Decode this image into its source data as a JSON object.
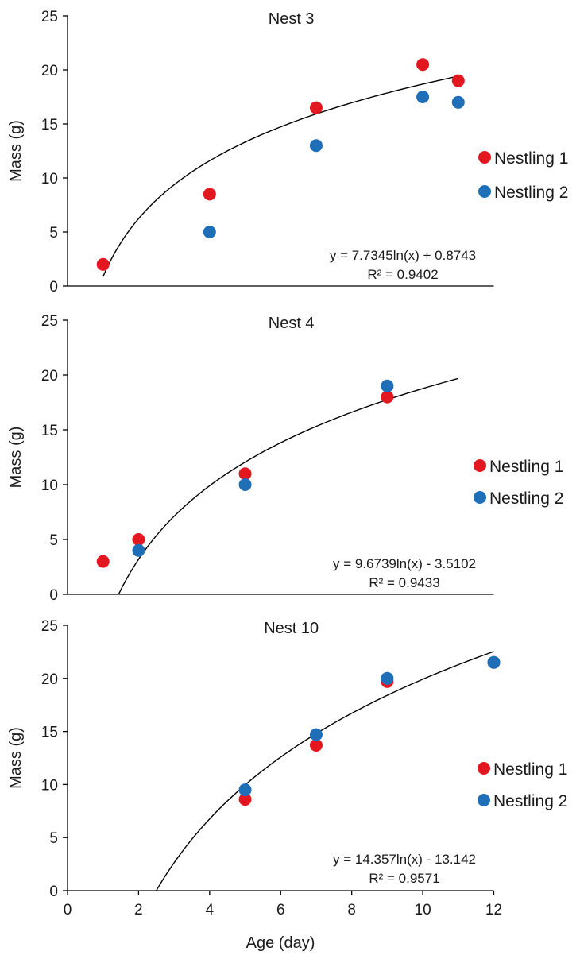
{
  "shared_xlabel": "Age (day)",
  "chart_data": [
    {
      "type": "scatter",
      "title": "Nest 3",
      "ylabel": "Mass (g)",
      "ylim": [
        0,
        25
      ],
      "yticks": [
        "0",
        "5",
        "10",
        "15",
        "20",
        "25"
      ],
      "xlim": [
        0,
        12
      ],
      "series": [
        {
          "name": "Nestling 1",
          "color": "#e3171f",
          "x": [
            1,
            4,
            7,
            10,
            11
          ],
          "y": [
            2,
            8.5,
            16.5,
            20.5,
            19
          ]
        },
        {
          "name": "Nestling 2",
          "color": "#1f6fb8",
          "x": [
            4,
            7,
            10,
            11
          ],
          "y": [
            5,
            13,
            17.5,
            17
          ]
        }
      ],
      "trendline": {
        "a": 7.7345,
        "b": 0.8743,
        "x_start": 1,
        "x_end": 11
      },
      "equation": "y = 7.7345ln(x) + 0.8743",
      "r2": "R² = 0.9402",
      "legend_position": "right"
    },
    {
      "type": "scatter",
      "title": "Nest 4",
      "ylabel": "Mass (g)",
      "ylim": [
        0,
        25
      ],
      "yticks": [
        "0",
        "5",
        "10",
        "15",
        "20",
        "25"
      ],
      "xlim": [
        0,
        12
      ],
      "series": [
        {
          "name": "Nestling 1",
          "color": "#e3171f",
          "x": [
            1,
            2,
            5,
            9
          ],
          "y": [
            3,
            5,
            11,
            18
          ]
        },
        {
          "name": "Nestling 2",
          "color": "#1f6fb8",
          "x": [
            2,
            5,
            9
          ],
          "y": [
            4,
            10,
            19
          ]
        }
      ],
      "trendline": {
        "a": 9.6739,
        "b": -3.5102,
        "x_start": 1.44,
        "x_end": 11
      },
      "equation": "y = 9.6739ln(x) - 3.5102",
      "r2": "R² = 0.9433",
      "legend_position": "right"
    },
    {
      "type": "scatter",
      "title": "Nest 10",
      "ylabel": "Mass (g)",
      "ylim": [
        0,
        25
      ],
      "yticks": [
        "0",
        "5",
        "10",
        "15",
        "20",
        "25"
      ],
      "xlim": [
        0,
        12
      ],
      "xticks": [
        "0",
        "2",
        "4",
        "6",
        "8",
        "10",
        "12"
      ],
      "series": [
        {
          "name": "Nestling 1",
          "color": "#e3171f",
          "x": [
            5,
            7,
            9,
            12
          ],
          "y": [
            8.6,
            13.7,
            19.7,
            21.5
          ]
        },
        {
          "name": "Nestling 2",
          "color": "#1f6fb8",
          "x": [
            5,
            7,
            9,
            12
          ],
          "y": [
            9.5,
            14.7,
            20,
            21.5
          ]
        }
      ],
      "trendline": {
        "a": 14.357,
        "b": -13.142,
        "x_start": 2.5,
        "x_end": 12
      },
      "equation": "y = 14.357ln(x) - 13.142",
      "r2": "R² = 0.9571",
      "legend_position": "right"
    }
  ]
}
